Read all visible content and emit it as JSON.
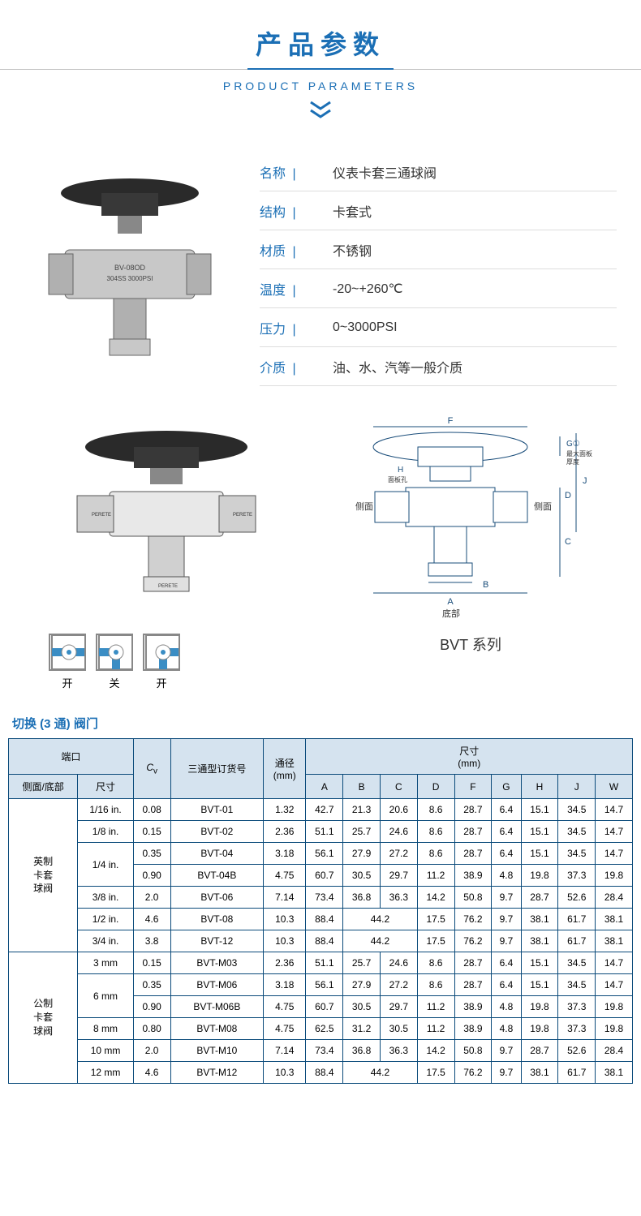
{
  "header": {
    "title_cn": "产品参数",
    "title_en": "PRODUCT PARAMETERS"
  },
  "params": [
    {
      "label": "名称",
      "value": "仪表卡套三通球阀"
    },
    {
      "label": "结构",
      "value": "卡套式"
    },
    {
      "label": "材质",
      "value": "不锈钢"
    },
    {
      "label": "温度",
      "value": "-20~+260℃"
    },
    {
      "label": "压力",
      "value": "0~3000PSI"
    },
    {
      "label": "介质",
      "value": "油、水、汽等一般介质"
    }
  ],
  "product_marking": {
    "line1": "BV-08OD",
    "line2": "304SS 3000PSI"
  },
  "states": [
    {
      "label": "开"
    },
    {
      "label": "关"
    },
    {
      "label": "开"
    }
  ],
  "diagram": {
    "series_name": "BVT 系列",
    "labels": {
      "F": "F",
      "G": "G①",
      "G_note": "最大面板\n厚度",
      "H": "H",
      "H_note": "面板孔",
      "side": "侧面",
      "bottom": "底部",
      "J": "J",
      "D": "D",
      "C": "C",
      "A": "A",
      "B": "B"
    }
  },
  "table_title": "切换 (3 通) 阀门",
  "table": {
    "colors": {
      "header_bg": "#d5e3ef",
      "border": "#0a4a7a",
      "title_color": "#1b6fb5"
    },
    "headers": {
      "port": "端口",
      "port_sub1": "侧面/底部",
      "port_sub2": "尺寸",
      "cv": "Cᵥ",
      "order": "三通型订货号",
      "bore": "通径\n(mm)",
      "dims": "尺寸\n(mm)",
      "dim_cols": [
        "A",
        "B",
        "C",
        "D",
        "F",
        "G",
        "H",
        "J",
        "W"
      ]
    },
    "groups": [
      {
        "name": "英制\n卡套\n球阀",
        "rows": [
          {
            "size": "1/16 in.",
            "size_rowspan": 1,
            "cv": "0.08",
            "order": "BVT-01",
            "bore": "1.32",
            "A": "42.7",
            "B": "21.3",
            "C": "20.6",
            "D": "8.6",
            "F": "28.7",
            "G": "6.4",
            "H": "15.1",
            "J": "34.5",
            "W": "14.7",
            "bc_merge": false
          },
          {
            "size": "1/8 in.",
            "size_rowspan": 1,
            "cv": "0.15",
            "order": "BVT-02",
            "bore": "2.36",
            "A": "51.1",
            "B": "25.7",
            "C": "24.6",
            "D": "8.6",
            "F": "28.7",
            "G": "6.4",
            "H": "15.1",
            "J": "34.5",
            "W": "14.7",
            "bc_merge": false
          },
          {
            "size": "1/4 in.",
            "size_rowspan": 2,
            "cv": "0.35",
            "order": "BVT-04",
            "bore": "3.18",
            "A": "56.1",
            "B": "27.9",
            "C": "27.2",
            "D": "8.6",
            "F": "28.7",
            "G": "6.4",
            "H": "15.1",
            "J": "34.5",
            "W": "14.7",
            "bc_merge": false
          },
          {
            "size": "",
            "size_rowspan": 0,
            "cv": "0.90",
            "order": "BVT-04B",
            "bore": "4.75",
            "A": "60.7",
            "B": "30.5",
            "C": "29.7",
            "D": "11.2",
            "F": "38.9",
            "G": "4.8",
            "H": "19.8",
            "J": "37.3",
            "W": "19.8",
            "bc_merge": false
          },
          {
            "size": "3/8 in.",
            "size_rowspan": 1,
            "cv": "2.0",
            "order": "BVT-06",
            "bore": "7.14",
            "A": "73.4",
            "B": "36.8",
            "C": "36.3",
            "D": "14.2",
            "F": "50.8",
            "G": "9.7",
            "H": "28.7",
            "J": "52.6",
            "W": "28.4",
            "bc_merge": false
          },
          {
            "size": "1/2 in.",
            "size_rowspan": 1,
            "cv": "4.6",
            "order": "BVT-08",
            "bore": "10.3",
            "A": "88.4",
            "BC": "44.2",
            "D": "17.5",
            "F": "76.2",
            "G": "9.7",
            "H": "38.1",
            "J": "61.7",
            "W": "38.1",
            "bc_merge": true
          },
          {
            "size": "3/4 in.",
            "size_rowspan": 1,
            "cv": "3.8",
            "order": "BVT-12",
            "bore": "10.3",
            "A": "88.4",
            "BC": "44.2",
            "D": "17.5",
            "F": "76.2",
            "G": "9.7",
            "H": "38.1",
            "J": "61.7",
            "W": "38.1",
            "bc_merge": true
          }
        ]
      },
      {
        "name": "公制\n卡套\n球阀",
        "rows": [
          {
            "size": "3 mm",
            "size_rowspan": 1,
            "cv": "0.15",
            "order": "BVT-M03",
            "bore": "2.36",
            "A": "51.1",
            "B": "25.7",
            "C": "24.6",
            "D": "8.6",
            "F": "28.7",
            "G": "6.4",
            "H": "15.1",
            "J": "34.5",
            "W": "14.7",
            "bc_merge": false
          },
          {
            "size": "6 mm",
            "size_rowspan": 2,
            "cv": "0.35",
            "order": "BVT-M06",
            "bore": "3.18",
            "A": "56.1",
            "B": "27.9",
            "C": "27.2",
            "D": "8.6",
            "F": "28.7",
            "G": "6.4",
            "H": "15.1",
            "J": "34.5",
            "W": "14.7",
            "bc_merge": false
          },
          {
            "size": "",
            "size_rowspan": 0,
            "cv": "0.90",
            "order": "BVT-M06B",
            "bore": "4.75",
            "A": "60.7",
            "B": "30.5",
            "C": "29.7",
            "D": "11.2",
            "F": "38.9",
            "G": "4.8",
            "H": "19.8",
            "J": "37.3",
            "W": "19.8",
            "bc_merge": false
          },
          {
            "size": "8 mm",
            "size_rowspan": 1,
            "cv": "0.80",
            "order": "BVT-M08",
            "bore": "4.75",
            "A": "62.5",
            "B": "31.2",
            "C": "30.5",
            "D": "11.2",
            "F": "38.9",
            "G": "4.8",
            "H": "19.8",
            "J": "37.3",
            "W": "19.8",
            "bc_merge": false
          },
          {
            "size": "10 mm",
            "size_rowspan": 1,
            "cv": "2.0",
            "order": "BVT-M10",
            "bore": "7.14",
            "A": "73.4",
            "B": "36.8",
            "C": "36.3",
            "D": "14.2",
            "F": "50.8",
            "G": "9.7",
            "H": "28.7",
            "J": "52.6",
            "W": "28.4",
            "bc_merge": false
          },
          {
            "size": "12 mm",
            "size_rowspan": 1,
            "cv": "4.6",
            "order": "BVT-M12",
            "bore": "10.3",
            "A": "88.4",
            "BC": "44.2",
            "D": "17.5",
            "F": "76.2",
            "G": "9.7",
            "H": "38.1",
            "J": "61.7",
            "W": "38.1",
            "bc_merge": true
          }
        ]
      }
    ]
  }
}
